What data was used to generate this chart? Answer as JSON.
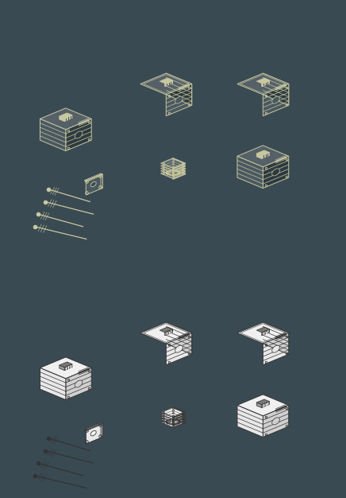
{
  "bg_top": "#3a4a52",
  "bg_bottom": "#ffffff",
  "line_dark": "#c8c8a0",
  "line_light": "#333333",
  "fill_dark_body": "#3a4a52",
  "fill_dark_face1": "#4a5860",
  "fill_dark_face2": "#2e3a40",
  "fill_dark_top": "#556068",
  "fill_dark_gear": "#b0a070",
  "fill_dark_gear2": "#908060",
  "fill_light_body": "#f5f5f5",
  "fill_light_face1": "#e8e8e8",
  "fill_light_face2": "#d0d0d0",
  "fill_light_top": "#f0f0f0",
  "fill_light_gear": "#cccccc",
  "fill_light_gear2": "#aaaaaa",
  "fig_width": 4.36,
  "fig_height": 6.26,
  "dpi": 100
}
